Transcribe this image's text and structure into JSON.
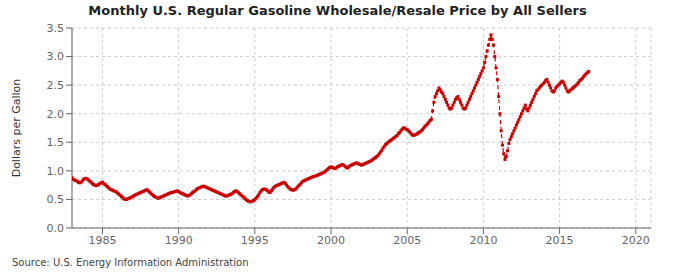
{
  "chart_data": {
    "type": "line",
    "title": "Monthly U.S. Regular Gasoline Wholesale/Resale Price by All Sellers",
    "ylabel": "Dollars per Gallon",
    "annotations": [
      "Source: U.S. Energy Information Administration"
    ],
    "color": "#CC0000",
    "line_style": "dashed",
    "marker": "square",
    "grid": true,
    "xlim": [
      1983,
      2021
    ],
    "xticks": [
      1985,
      1990,
      1995,
      2000,
      2005,
      2010,
      2015,
      2020
    ],
    "ylim": [
      0.0,
      3.5
    ],
    "yticks": [
      {
        "value": 0.0,
        "label": "0.0"
      },
      0.5,
      {
        "value": 1.0,
        "label": "1.0"
      },
      1.5,
      {
        "value": 2.0,
        "label": "2.0"
      },
      2.5,
      {
        "value": 3.0,
        "label": "3.0"
      },
      3.5
    ],
    "x": [
      1983,
      1983.083333,
      1983.166667,
      1983.25,
      1983.333333,
      1983.416667,
      1983.5,
      1983.583333,
      1983.666667,
      1983.75,
      1983.833333,
      1983.916667,
      1984,
      1984.083333,
      1984.166667,
      1984.25,
      1984.333333,
      1984.416667,
      1984.5,
      1984.583333,
      1984.666667,
      1984.75,
      1984.833333,
      1984.916667,
      1985,
      1985.083333,
      1985.166667,
      1985.25,
      1985.333333,
      1985.416667,
      1985.5,
      1985.583333,
      1985.666667,
      1985.75,
      1985.833333,
      1985.916667,
      1986,
      1986.083333,
      1986.166667,
      1986.25,
      1986.333333,
      1986.416667,
      1986.5,
      1986.583333,
      1986.666667,
      1986.75,
      1986.833333,
      1986.916667,
      1987,
      1987.083333,
      1987.166667,
      1987.25,
      1987.333333,
      1987.416667,
      1987.5,
      1987.583333,
      1987.666667,
      1987.75,
      1987.833333,
      1987.916667,
      1988,
      1988.083333,
      1988.166667,
      1988.25,
      1988.333333,
      1988.416667,
      1988.5,
      1988.583333,
      1988.666667,
      1988.75,
      1988.833333,
      1988.916667,
      1989,
      1989.083333,
      1989.166667,
      1989.25,
      1989.333333,
      1989.416667,
      1989.5,
      1989.583333,
      1989.666667,
      1989.75,
      1989.833333,
      1989.916667,
      1990,
      1990.083333,
      1990.166667,
      1990.25,
      1990.333333,
      1990.416667,
      1990.5,
      1990.583333,
      1990.666667,
      1990.75,
      1990.833333,
      1990.916667,
      1991,
      1991.083333,
      1991.166667,
      1991.25,
      1991.333333,
      1991.416667,
      1991.5,
      1991.583333,
      1991.666667,
      1991.75,
      1991.833333,
      1991.916667,
      1992,
      1992.083333,
      1992.166667,
      1992.25,
      1992.333333,
      1992.416667,
      1992.5,
      1992.583333,
      1992.666667,
      1992.75,
      1992.833333,
      1992.916667,
      1993,
      1993.083333,
      1993.166667,
      1993.25,
      1993.333333,
      1993.416667,
      1993.5,
      1993.583333,
      1993.666667,
      1993.75,
      1993.833333,
      1993.916667,
      1994,
      1994.083333,
      1994.166667,
      1994.25,
      1994.333333,
      1994.416667,
      1994.5,
      1994.583333,
      1994.666667,
      1994.75,
      1994.833333,
      1994.916667,
      1995,
      1995.083333,
      1995.166667,
      1995.25,
      1995.333333,
      1995.416667,
      1995.5,
      1995.583333,
      1995.666667,
      1995.75,
      1995.833333,
      1995.916667,
      1996,
      1996.083333,
      1996.166667,
      1996.25,
      1996.333333,
      1996.416667,
      1996.5,
      1996.583333,
      1996.666667,
      1996.75,
      1996.833333,
      1996.916667,
      1997,
      1997.083333,
      1997.166667,
      1997.25,
      1997.333333,
      1997.416667,
      1997.5,
      1997.583333,
      1997.666667,
      1997.75,
      1997.833333,
      1997.916667,
      1998,
      1998.083333,
      1998.166667,
      1998.25,
      1998.333333,
      1998.416667,
      1998.5,
      1998.583333,
      1998.666667,
      1998.75,
      1998.833333,
      1998.916667,
      1999,
      1999.083333,
      1999.166667,
      1999.25,
      1999.333333,
      1999.416667,
      1999.5,
      1999.583333,
      1999.666667,
      1999.75,
      1999.833333,
      1999.916667,
      2000,
      2000.083333,
      2000.166667,
      2000.25,
      2000.333333,
      2000.416667,
      2000.5,
      2000.583333,
      2000.666667,
      2000.75,
      2000.833333,
      2000.916667,
      2001,
      2001.083333,
      2001.166667,
      2001.25,
      2001.333333,
      2001.416667,
      2001.5,
      2001.583333,
      2001.666667,
      2001.75,
      2001.833333,
      2001.916667,
      2002,
      2002.083333,
      2002.166667,
      2002.25,
      2002.333333,
      2002.416667,
      2002.5,
      2002.583333,
      2002.666667,
      2002.75,
      2002.833333,
      2002.916667,
      2003,
      2003.083333,
      2003.166667,
      2003.25,
      2003.333333,
      2003.416667,
      2003.5,
      2003.583333,
      2003.666667,
      2003.75,
      2003.833333,
      2003.916667,
      2004,
      2004.083333,
      2004.166667,
      2004.25,
      2004.333333,
      2004.416667,
      2004.5,
      2004.583333,
      2004.666667,
      2004.75,
      2004.833333,
      2004.916667,
      2005,
      2005.083333,
      2005.166667,
      2005.25,
      2005.333333,
      2005.416667,
      2005.5,
      2005.583333,
      2005.666667,
      2005.75,
      2005.833333,
      2005.916667,
      2006,
      2006.083333,
      2006.166667,
      2006.25,
      2006.333333,
      2006.416667,
      2006.5,
      2006.583333,
      2006.666667,
      2006.75,
      2006.833333,
      2006.916667,
      2007,
      2007.083333,
      2007.166667,
      2007.25,
      2007.333333,
      2007.416667,
      2007.5,
      2007.583333,
      2007.666667,
      2007.75,
      2007.833333,
      2007.916667,
      2008,
      2008.083333,
      2008.166667,
      2008.25,
      2008.333333,
      2008.416667,
      2008.5,
      2008.583333,
      2008.666667,
      2008.75,
      2008.833333,
      2008.916667,
      2009,
      2009.083333,
      2009.166667,
      2009.25,
      2009.333333,
      2009.416667,
      2009.5,
      2009.583333,
      2009.666667,
      2009.75,
      2009.833333,
      2009.916667,
      2010,
      2010.083333,
      2010.166667,
      2010.25,
      2010.333333,
      2010.416667,
      2010.5,
      2010.583333,
      2010.666667,
      2010.75,
      2010.833333,
      2010.916667,
      2011,
      2011.083333,
      2011.166667,
      2011.25,
      2011.333333,
      2011.416667,
      2011.5,
      2011.583333,
      2011.666667,
      2011.75,
      2011.833333,
      2011.916667,
      2012,
      2012.083333,
      2012.166667,
      2012.25,
      2012.333333,
      2012.416667,
      2012.5,
      2012.583333,
      2012.666667,
      2012.75,
      2012.833333,
      2012.916667,
      2013,
      2013.083333,
      2013.166667,
      2013.25,
      2013.333333,
      2013.416667,
      2013.5,
      2013.583333,
      2013.666667,
      2013.75,
      2013.833333,
      2013.916667,
      2014,
      2014.083333,
      2014.166667,
      2014.25,
      2014.333333,
      2014.416667,
      2014.5,
      2014.583333,
      2014.666667,
      2014.75,
      2014.833333,
      2014.916667,
      2015,
      2015.083333,
      2015.166667,
      2015.25,
      2015.333333,
      2015.416667,
      2015.5,
      2015.583333,
      2015.666667,
      2015.75,
      2015.833333,
      2015.916667,
      2016,
      2016.083333,
      2016.166667,
      2016.25,
      2016.333333,
      2016.416667,
      2016.5,
      2016.583333,
      2016.666667,
      2016.75,
      2016.833333,
      2016.916667
    ],
    "values": [
      0.88,
      0.85,
      0.84,
      0.83,
      0.82,
      0.8,
      0.79,
      0.8,
      0.82,
      0.85,
      0.86,
      0.87,
      0.86,
      0.84,
      0.82,
      0.8,
      0.78,
      0.76,
      0.75,
      0.74,
      0.75,
      0.76,
      0.78,
      0.79,
      0.8,
      0.78,
      0.76,
      0.74,
      0.72,
      0.7,
      0.68,
      0.67,
      0.66,
      0.65,
      0.64,
      0.63,
      0.61,
      0.59,
      0.57,
      0.55,
      0.53,
      0.51,
      0.5,
      0.5,
      0.51,
      0.52,
      0.53,
      0.54,
      0.55,
      0.57,
      0.58,
      0.59,
      0.6,
      0.61,
      0.62,
      0.63,
      0.64,
      0.65,
      0.66,
      0.67,
      0.65,
      0.63,
      0.61,
      0.59,
      0.57,
      0.55,
      0.54,
      0.53,
      0.52,
      0.53,
      0.54,
      0.55,
      0.56,
      0.57,
      0.58,
      0.59,
      0.6,
      0.61,
      0.62,
      0.62,
      0.63,
      0.64,
      0.64,
      0.65,
      0.64,
      0.62,
      0.61,
      0.6,
      0.59,
      0.58,
      0.57,
      0.56,
      0.57,
      0.58,
      0.6,
      0.62,
      0.64,
      0.65,
      0.67,
      0.69,
      0.7,
      0.71,
      0.72,
      0.73,
      0.73,
      0.72,
      0.71,
      0.7,
      0.69,
      0.68,
      0.67,
      0.66,
      0.65,
      0.64,
      0.63,
      0.62,
      0.61,
      0.6,
      0.59,
      0.58,
      0.57,
      0.56,
      0.56,
      0.57,
      0.58,
      0.59,
      0.6,
      0.62,
      0.64,
      0.65,
      0.64,
      0.62,
      0.6,
      0.58,
      0.56,
      0.54,
      0.52,
      0.5,
      0.48,
      0.47,
      0.46,
      0.46,
      0.47,
      0.48,
      0.5,
      0.52,
      0.55,
      0.58,
      0.62,
      0.65,
      0.67,
      0.68,
      0.68,
      0.67,
      0.65,
      0.63,
      0.62,
      0.65,
      0.68,
      0.71,
      0.73,
      0.74,
      0.75,
      0.76,
      0.77,
      0.78,
      0.79,
      0.8,
      0.78,
      0.75,
      0.72,
      0.7,
      0.68,
      0.67,
      0.66,
      0.67,
      0.68,
      0.7,
      0.73,
      0.75,
      0.77,
      0.8,
      0.82,
      0.83,
      0.84,
      0.85,
      0.86,
      0.87,
      0.88,
      0.89,
      0.9,
      0.9,
      0.91,
      0.92,
      0.93,
      0.94,
      0.95,
      0.96,
      0.97,
      0.98,
      1.0,
      1.02,
      1.04,
      1.06,
      1.07,
      1.06,
      1.05,
      1.04,
      1.05,
      1.07,
      1.08,
      1.09,
      1.1,
      1.11,
      1.1,
      1.08,
      1.06,
      1.05,
      1.07,
      1.09,
      1.1,
      1.11,
      1.12,
      1.13,
      1.14,
      1.13,
      1.12,
      1.11,
      1.1,
      1.11,
      1.12,
      1.13,
      1.14,
      1.15,
      1.16,
      1.17,
      1.18,
      1.2,
      1.22,
      1.23,
      1.25,
      1.27,
      1.3,
      1.33,
      1.36,
      1.4,
      1.43,
      1.46,
      1.48,
      1.5,
      1.52,
      1.53,
      1.55,
      1.57,
      1.58,
      1.6,
      1.62,
      1.65,
      1.67,
      1.7,
      1.73,
      1.75,
      1.75,
      1.73,
      1.72,
      1.7,
      1.68,
      1.65,
      1.63,
      1.62,
      1.63,
      1.64,
      1.65,
      1.67,
      1.68,
      1.7,
      1.72,
      1.75,
      1.78,
      1.8,
      1.82,
      1.85,
      1.88,
      1.9,
      2.05,
      2.2,
      2.3,
      2.35,
      2.4,
      2.45,
      2.42,
      2.38,
      2.35,
      2.3,
      2.25,
      2.2,
      2.15,
      2.1,
      2.08,
      2.1,
      2.15,
      2.2,
      2.25,
      2.28,
      2.3,
      2.25,
      2.2,
      2.15,
      2.1,
      2.08,
      2.1,
      2.15,
      2.2,
      2.25,
      2.3,
      2.35,
      2.4,
      2.45,
      2.5,
      2.55,
      2.6,
      2.65,
      2.7,
      2.75,
      2.8,
      2.9,
      3.0,
      3.1,
      3.2,
      3.3,
      3.38,
      3.3,
      3.2,
      3.0,
      2.8,
      2.6,
      2.3,
      2.0,
      1.7,
      1.45,
      1.3,
      1.2,
      1.25,
      1.35,
      1.48,
      1.55,
      1.6,
      1.65,
      1.7,
      1.75,
      1.8,
      1.85,
      1.9,
      1.95,
      2.0,
      2.05,
      2.1,
      2.15,
      2.08,
      2.05,
      2.1,
      2.15,
      2.2,
      2.25,
      2.3,
      2.35,
      2.4,
      2.42,
      2.45,
      2.48,
      2.5,
      2.52,
      2.55,
      2.58,
      2.6,
      2.55,
      2.5,
      2.45,
      2.4,
      2.38,
      2.4,
      2.45,
      2.48,
      2.5,
      2.52,
      2.55,
      2.57,
      2.55,
      2.5,
      2.45,
      2.4,
      2.38,
      2.4,
      2.42,
      2.44,
      2.46,
      2.48,
      2.5,
      2.52,
      2.55,
      2.58,
      2.6,
      2.62,
      2.65,
      2.68,
      2.7,
      2.72,
      2.74
    ]
  }
}
